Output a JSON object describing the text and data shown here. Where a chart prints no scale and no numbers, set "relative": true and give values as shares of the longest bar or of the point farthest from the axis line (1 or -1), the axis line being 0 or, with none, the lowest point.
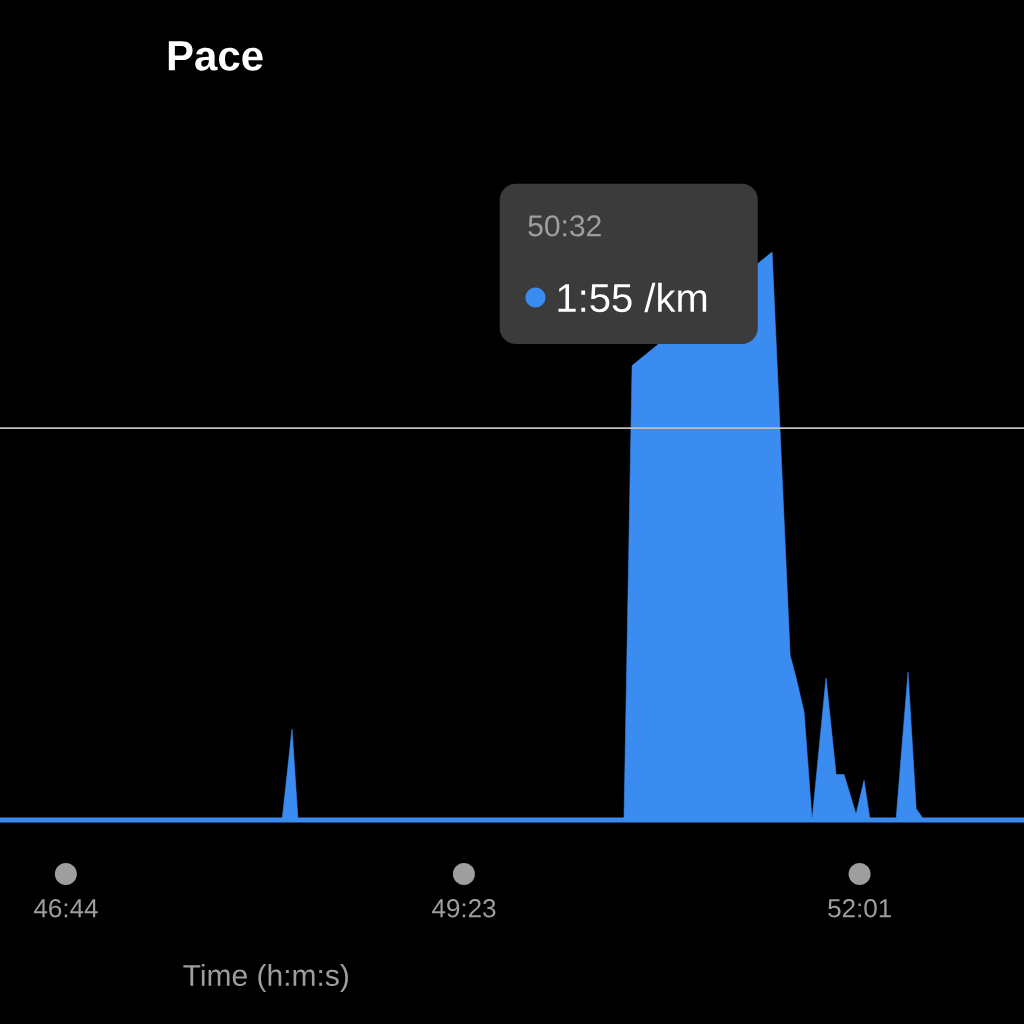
{
  "chart_data": {
    "type": "area",
    "title": "Pace",
    "xlabel": "Time (h:m:s)",
    "relative": true,
    "x": [
      46.294,
      48.172,
      48.238,
      48.278,
      50.448,
      50.502,
      51.434,
      51.554,
      51.594,
      51.647,
      51.7,
      51.793,
      51.86,
      51.913,
      51.993,
      52.046,
      52.086,
      52.259,
      52.339,
      52.393,
      52.446,
      53.111
    ],
    "values": [
      0,
      0,
      0.16,
      0,
      0,
      0.8,
      1.0,
      0.29,
      0.25,
      0.19,
      0,
      0.25,
      0.08,
      0.08,
      0.01,
      0.07,
      0,
      0,
      0.26,
      0.02,
      0,
      0
    ],
    "color": "#3b8cf0",
    "marker": "none",
    "xlim": [
      46.294,
      53.111
    ],
    "xticks": [
      {
        "value": 46.733,
        "label": "46:44"
      },
      {
        "value": 49.383,
        "label": "49:23"
      },
      {
        "value": 52.017,
        "label": "52:01"
      }
    ],
    "ref_lines": [
      {
        "axis": "y",
        "value": 0.69,
        "color": "#bfbfbf"
      }
    ],
    "annotations": [
      "50:32",
      "1:55 /km"
    ]
  }
}
